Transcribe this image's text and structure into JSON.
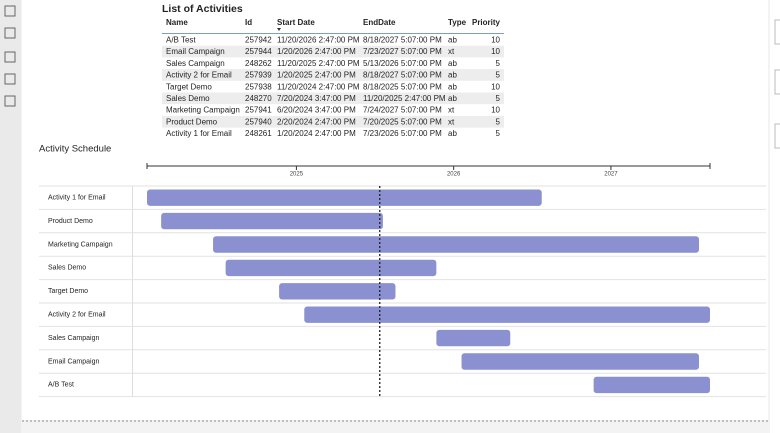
{
  "table": {
    "title": "List of Activities",
    "headers": [
      "Name",
      "Id",
      "Start Date",
      "EndDate",
      "Type",
      "Priority"
    ],
    "rows": [
      [
        "A/B Test",
        257942,
        "11/20/2026 2:47:00 PM",
        "8/18/2027 5:07:00 PM",
        "ab",
        10
      ],
      [
        "Email Campaign",
        257944,
        "1/20/2026 2:47:00 PM",
        "7/23/2027 5:07:00 PM",
        "xt",
        10
      ],
      [
        "Sales Campaign",
        248262,
        "11/20/2025 2:47:00 PM",
        "5/13/2026 5:07:00 PM",
        "ab",
        5
      ],
      [
        "Activity 2 for Email",
        257939,
        "1/20/2025 2:47:00 PM",
        "8/18/2027 5:07:00 PM",
        "ab",
        5
      ],
      [
        "Target Demo",
        257938,
        "11/20/2024 2:47:00 PM",
        "8/18/2025 5:07:00 PM",
        "ab",
        10
      ],
      [
        "Sales Demo",
        248270,
        "7/20/2024 3:47:00 PM",
        "11/20/2025 2:47:00 PM",
        "ab",
        5
      ],
      [
        "Marketing Campaign",
        257941,
        "6/20/2024 3:47:00 PM",
        "7/24/2027 5:07:00 PM",
        "xt",
        10
      ],
      [
        "Product Demo",
        257940,
        "2/20/2024 2:47:00 PM",
        "7/20/2025 5:07:00 PM",
        "xt",
        5
      ],
      [
        "Activity 1 for Email",
        248261,
        "1/20/2024 2:47:00 PM",
        "7/23/2026 5:07:00 PM",
        "ab",
        5
      ]
    ]
  },
  "chart_data": {
    "type": "gantt",
    "title": "Activity Schedule",
    "categories": [
      "Activity 1 for Email",
      "Product Demo",
      "Marketing Campaign",
      "Sales Demo",
      "Target Demo",
      "Activity 2 for Email",
      "Sales Campaign",
      "Email Campaign",
      "A/B Test"
    ],
    "start": [
      2024.05,
      2024.14,
      2024.47,
      2024.55,
      2024.89,
      2025.05,
      2025.89,
      2026.05,
      2026.89
    ],
    "end": [
      2026.56,
      2025.55,
      2027.56,
      2025.89,
      2025.63,
      2027.63,
      2026.36,
      2027.56,
      2027.63
    ],
    "color": "#8b90d0",
    "today": 2025.53,
    "xlim": [
      2024.05,
      2027.63
    ],
    "xticks": [
      2025,
      2026,
      2027
    ]
  }
}
